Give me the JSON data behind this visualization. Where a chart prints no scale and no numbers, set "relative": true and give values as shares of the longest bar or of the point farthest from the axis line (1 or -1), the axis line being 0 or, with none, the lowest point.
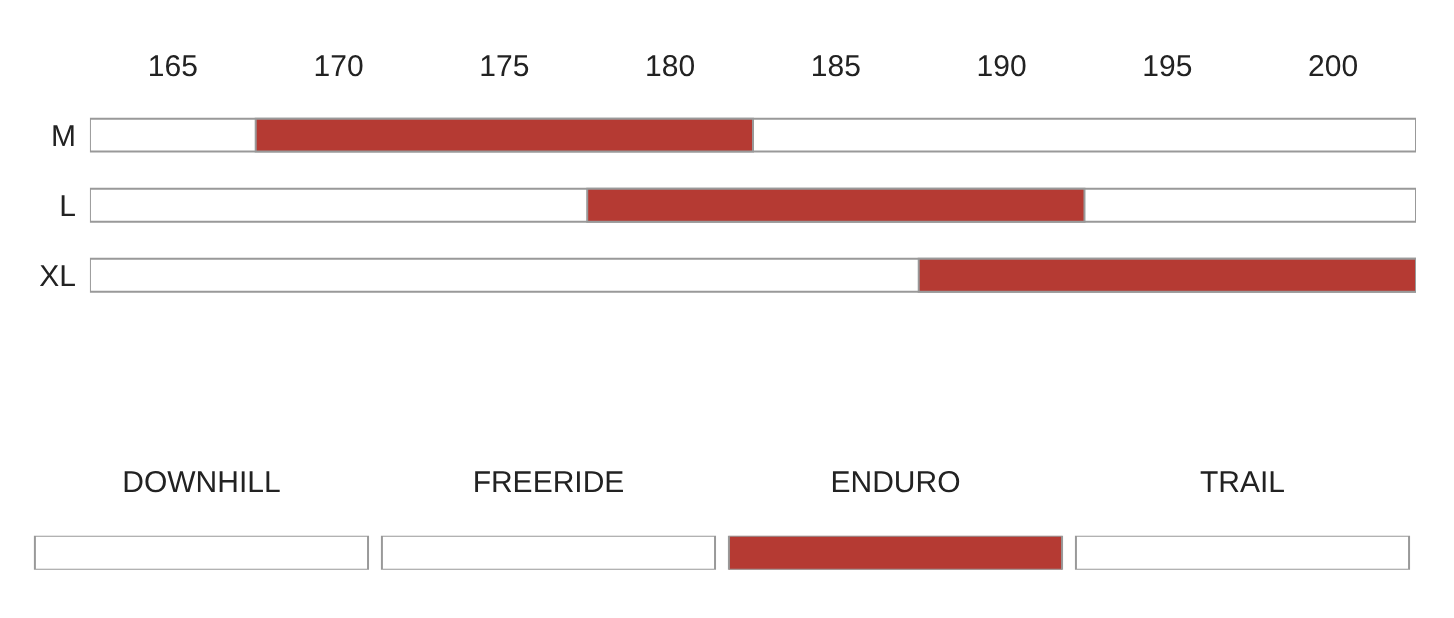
{
  "chart_data": [
    {
      "type": "bar",
      "orientation": "horizontal",
      "categories": [
        "M",
        "L",
        "XL"
      ],
      "base": [
        167.5,
        177.5,
        187.5
      ],
      "color": "#b53a33",
      "values": [
        15,
        15,
        15
      ],
      "xlim": [
        162.5,
        202.5
      ],
      "xticks": [
        165,
        170,
        175,
        180,
        185,
        190,
        195,
        200
      ]
    },
    {
      "type": "bar",
      "relative": true,
      "categories": [
        "DOWNHILL",
        "FREERIDE",
        "ENDURO",
        "TRAIL"
      ],
      "values": [
        1,
        1,
        1,
        1
      ],
      "colors": [
        "#ffffff",
        "#ffffff",
        "#b53a33",
        "#ffffff"
      ]
    }
  ]
}
